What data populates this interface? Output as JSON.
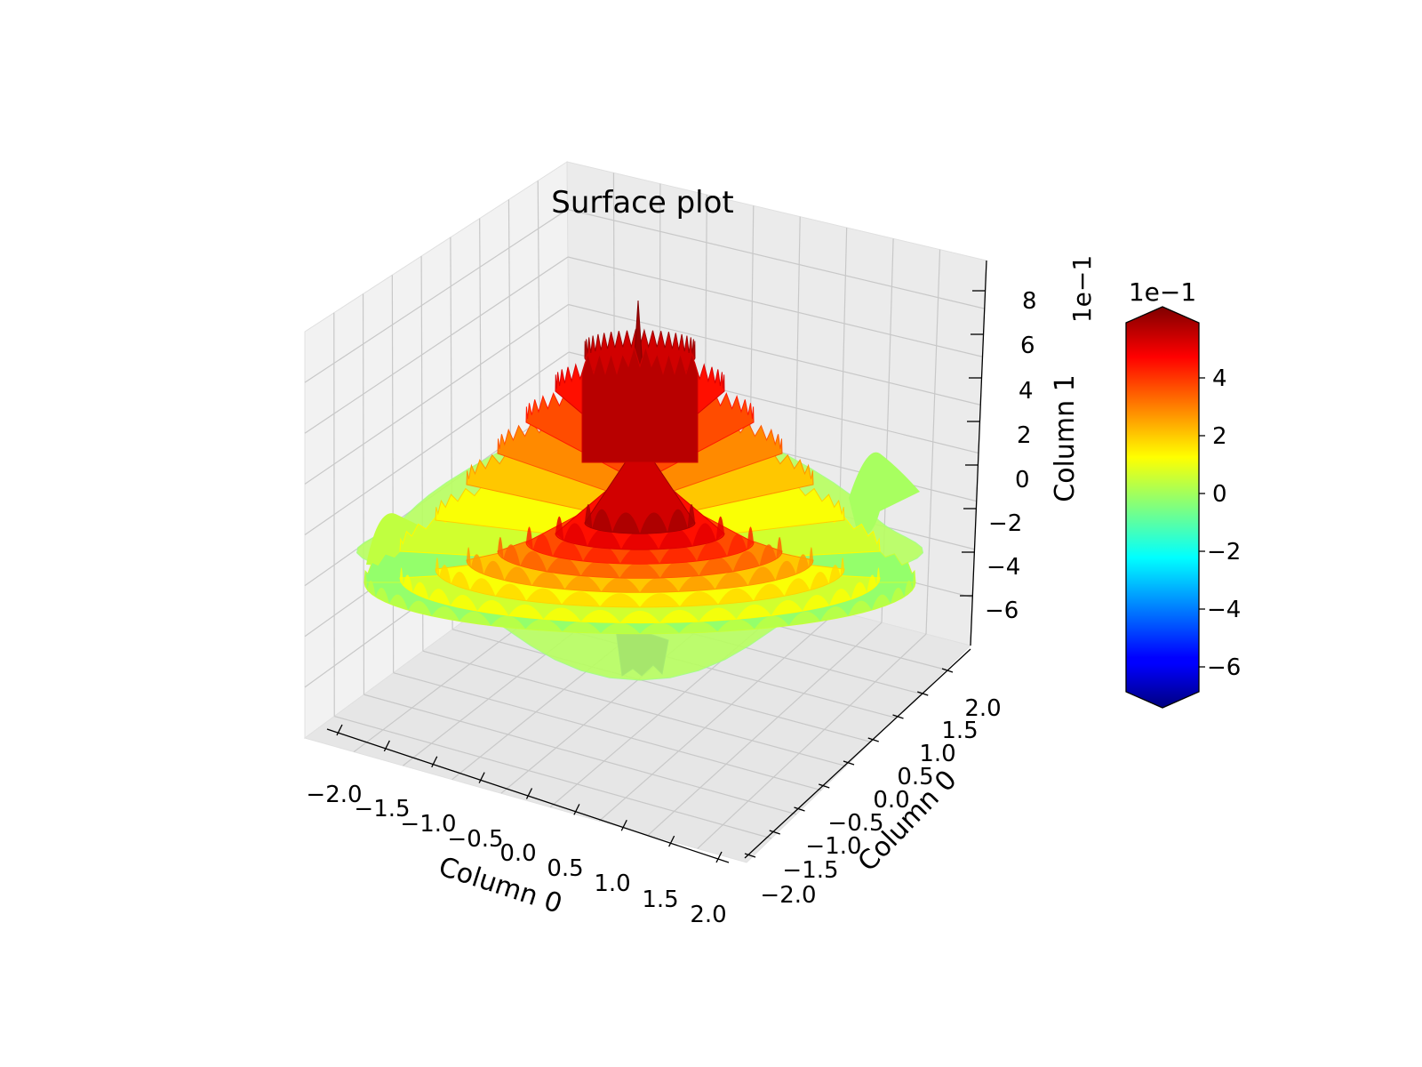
{
  "chart_data": {
    "type": "surface",
    "title": "Surface plot",
    "xlabel": "Column 0",
    "ylabel": "Column 0",
    "zlabel": "Column 1",
    "x_ticks": [
      "−2.0",
      "−1.5",
      "−1.0",
      "−0.5",
      "0.0",
      "0.5",
      "1.0",
      "1.5",
      "2.0"
    ],
    "y_ticks": [
      "−2.0",
      "−1.5",
      "−1.0",
      "−0.5",
      "0.0",
      "0.5",
      "1.0",
      "1.5",
      "2.0"
    ],
    "z_ticks": [
      "−6",
      "−4",
      "−2",
      "0",
      "2",
      "4",
      "6",
      "8"
    ],
    "z_offset_label": "1e−1",
    "xlim": [
      -2.0,
      2.0
    ],
    "ylim": [
      -2.0,
      2.0
    ],
    "zlim": [
      -0.75,
      0.92
    ],
    "z_max": 0.85,
    "z_min": -0.7,
    "colormap": "jet",
    "colorbar": {
      "offset_label": "1e−1",
      "ticks": [
        "−6",
        "−4",
        "−2",
        "0",
        "2",
        "4"
      ],
      "range": [
        -0.7,
        0.6
      ],
      "extend": "both"
    },
    "grid": true
  }
}
